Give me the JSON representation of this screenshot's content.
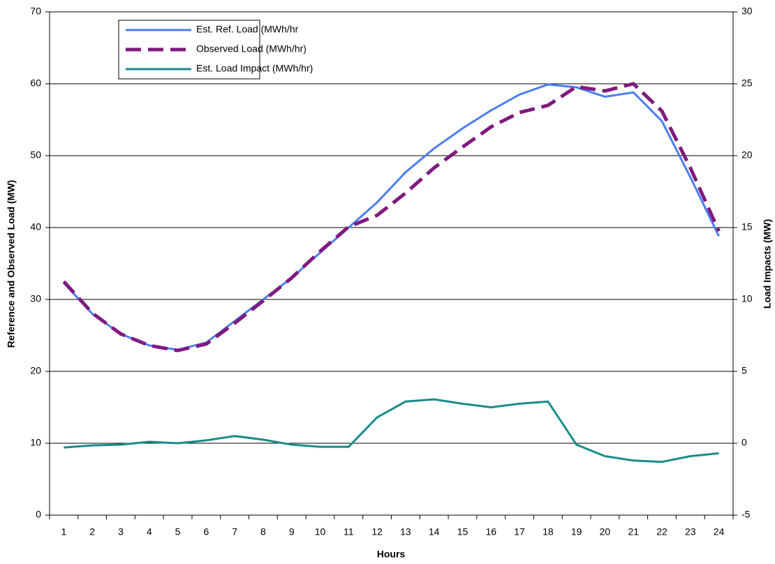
{
  "chart_data": {
    "type": "line",
    "xlabel": "Hours",
    "ylabel": "Reference and Observed Load (MW)",
    "y2label": "Load Impacts (MW)",
    "categories": [
      "1",
      "2",
      "3",
      "4",
      "5",
      "6",
      "7",
      "8",
      "9",
      "10",
      "11",
      "12",
      "13",
      "14",
      "15",
      "16",
      "17",
      "18",
      "19",
      "20",
      "21",
      "22",
      "23",
      "24"
    ],
    "series": [
      {
        "name": "Est. Ref. Load (MWh/hr",
        "color": "#4a7ef5",
        "dashed": false,
        "values": [
          32.3,
          28,
          25.2,
          23.6,
          23,
          24,
          27,
          30,
          33,
          36.5,
          40,
          43.5,
          47.7,
          51,
          53.8,
          56.3,
          58.5,
          59.9,
          59.5,
          58.2,
          58.8,
          54.8,
          47,
          38.8
        ]
      },
      {
        "name": "Observed Load (MWh/hr)",
        "color": "#7f1a7f",
        "dashed": true,
        "values": [
          32.5,
          28.1,
          25.2,
          23.6,
          22.9,
          23.8,
          26.7,
          29.8,
          33,
          36.7,
          40.1,
          41.7,
          44.8,
          48.3,
          51.2,
          54,
          56,
          57,
          59.6,
          59,
          60,
          56.2,
          48.3,
          39.5
        ]
      },
      {
        "name": "Est. Load Impact (MWh/hr)",
        "color": "#1a8c88",
        "dashed": false,
        "axis": "y2",
        "values": [
          -0.3,
          -0.15,
          -0.1,
          0.1,
          0,
          0.2,
          0.5,
          0.25,
          -0.1,
          -0.25,
          -0.25,
          1.8,
          2.9,
          3.05,
          2.75,
          2.5,
          2.75,
          2.9,
          -0.1,
          -0.9,
          -1.2,
          -1.3,
          -0.9,
          -0.7
        ]
      }
    ],
    "ylim": [
      0,
      70
    ],
    "yticks": [
      0,
      10,
      20,
      30,
      40,
      50,
      60,
      70
    ],
    "y2lim": [
      -5,
      30
    ],
    "y2ticks": [
      -5,
      0,
      5,
      10,
      15,
      20,
      25,
      30
    ],
    "grid": true
  }
}
